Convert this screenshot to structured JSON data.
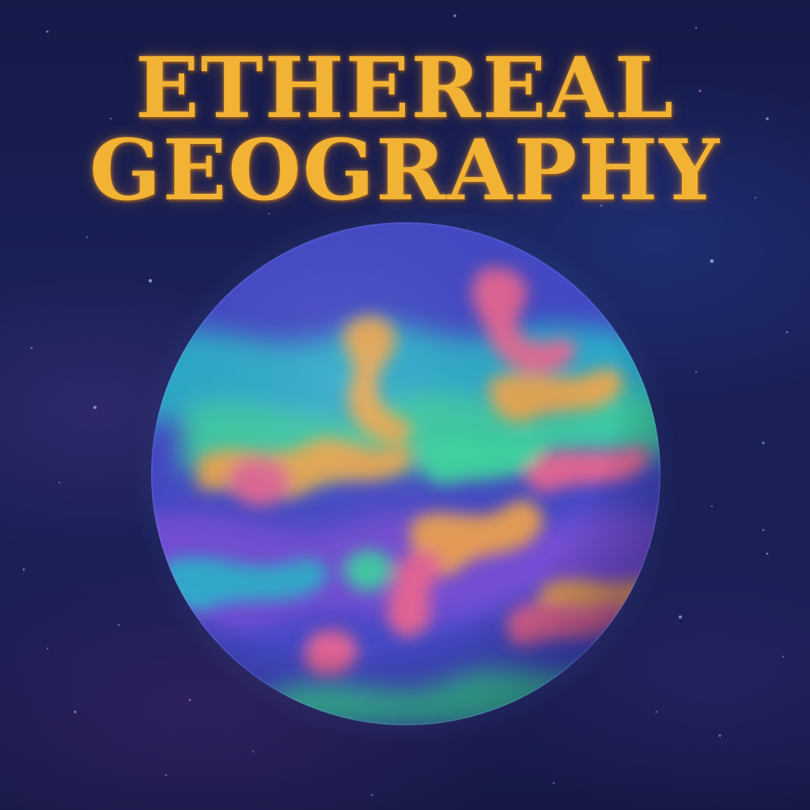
{
  "title": {
    "line1": "ETHEREAL",
    "line2": "GEOGRAPHY",
    "color": "#f2b233"
  },
  "colors": {
    "background": "#1a2157",
    "planet_base": "#3a4fc8",
    "band_orange": "#f4a64a",
    "band_pink": "#f0668f",
    "band_green": "#3dd6a0",
    "band_teal": "#2bb3c9",
    "band_violet": "#7a4fd6"
  },
  "planet": {
    "icon": "iridescent-planet"
  },
  "background_icon": "starfield"
}
